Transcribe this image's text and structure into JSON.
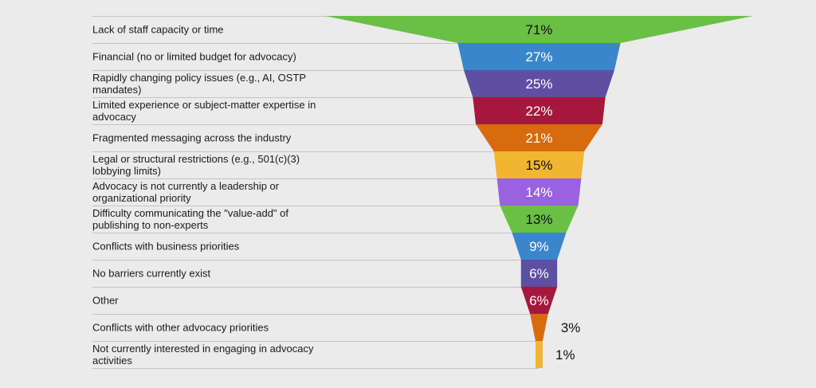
{
  "chart_data": {
    "type": "funnel",
    "title": "",
    "categories": [
      "Lack of staff capacity or time",
      "Financial (no or limited budget for advocacy)",
      "Rapidly changing policy issues (e.g., AI, OSTP mandates)",
      "Limited experience or subject-matter expertise in advocacy",
      "Fragmented messaging across the industry",
      "Legal or structural restrictions (e.g., 501(c)(3) lobbying limits)",
      "Advocacy is not currently a leadership or organizational priority",
      "Difficulty communicating the \"value-add\" of publishing to non-experts",
      "Conflicts with business priorities",
      "No barriers currently exist",
      "Other",
      "Conflicts with other advocacy priorities",
      "Not currently interested in engaging in advocacy activities"
    ],
    "label_lines": [
      [
        "Lack of staff capacity or time"
      ],
      [
        "Financial (no or limited budget for advocacy)"
      ],
      [
        "Rapidly changing policy issues (e.g., AI, OSTP",
        "mandates)"
      ],
      [
        "Limited experience or subject-matter expertise in",
        "advocacy"
      ],
      [
        "Fragmented messaging across the industry"
      ],
      [
        "Legal or structural restrictions (e.g., 501(c)(3)",
        "lobbying limits)"
      ],
      [
        "Advocacy is not currently a leadership or",
        "organizational priority"
      ],
      [
        "Difficulty communicating the \"value-add\" of",
        "publishing to non-experts"
      ],
      [
        "Conflicts with business priorities"
      ],
      [
        "No barriers currently exist"
      ],
      [
        "Other"
      ],
      [
        "Conflicts with other advocacy priorities"
      ],
      [
        "Not currently interested in engaging in advocacy",
        "activities"
      ]
    ],
    "values": [
      71,
      27,
      25,
      22,
      21,
      15,
      14,
      13,
      9,
      6,
      6,
      3,
      1
    ],
    "value_labels": [
      "71%",
      "27%",
      "25%",
      "22%",
      "21%",
      "15%",
      "14%",
      "13%",
      "9%",
      "6%",
      "6%",
      "3%",
      "1%"
    ],
    "colors": [
      "#6abf45",
      "#3a86cc",
      "#5e4fa2",
      "#a5183c",
      "#d86b0e",
      "#f2b531",
      "#9a61e0",
      "#6abf45",
      "#3a86cc",
      "#5e4fa2",
      "#a5183c",
      "#d86b0e",
      "#f2b531"
    ],
    "label_text_color": [
      "#111111",
      "#ffffff",
      "#ffffff",
      "#ffffff",
      "#ffffff",
      "#111111",
      "#ffffff",
      "#111111",
      "#ffffff",
      "#ffffff",
      "#ffffff",
      "#111111",
      "#111111"
    ],
    "legend": "none",
    "grid": false
  }
}
